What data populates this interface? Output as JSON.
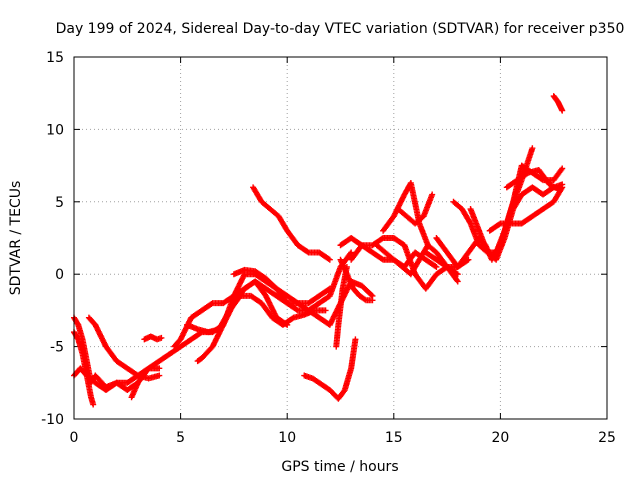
{
  "chart_data": {
    "type": "scatter",
    "title": "Day 199 of 2024, Sidereal Day-to-day VTEC variation (SDTVAR) for receiver p350",
    "xlabel": "GPS time / hours",
    "ylabel": "SDTVAR / TECUs",
    "xlim": [
      0,
      25
    ],
    "ylim": [
      -10,
      15
    ],
    "xticks": [
      "0",
      "5",
      "10",
      "15",
      "20",
      "25"
    ],
    "yticks": [
      "-10",
      "-5",
      "0",
      "5",
      "10",
      "15"
    ],
    "grid": true,
    "legend": "none",
    "marker": "plus",
    "color": "#ff0000",
    "series": [
      {
        "x": [
          0.0,
          0.2,
          0.4,
          0.6,
          0.8,
          1.0,
          1.5,
          2.0,
          2.5,
          3.0,
          3.5,
          4.0
        ],
        "y": [
          -3.0,
          -3.5,
          -4.5,
          -6.0,
          -7.5,
          -7.0,
          -7.8,
          -7.5,
          -7.5,
          -7.0,
          -6.5,
          -6.5
        ]
      },
      {
        "x": [
          0.0,
          0.3,
          0.6,
          1.0,
          1.5,
          2.0,
          2.5,
          3.0
        ],
        "y": [
          -7.0,
          -6.5,
          -7.0,
          -7.5,
          -8.0,
          -7.5,
          -8.0,
          -7.5
        ]
      },
      {
        "x": [
          0.0,
          0.2,
          0.4,
          0.6,
          0.8,
          0.9
        ],
        "y": [
          -4.0,
          -4.5,
          -5.5,
          -7.0,
          -8.5,
          -9.0
        ]
      },
      {
        "x": [
          0.7,
          1.0,
          1.5,
          2.0,
          2.5,
          3.0,
          3.5,
          4.0
        ],
        "y": [
          -3.0,
          -3.5,
          -5.0,
          -6.0,
          -6.5,
          -7.0,
          -7.2,
          -7.0
        ]
      },
      {
        "x": [
          2.7,
          3.0,
          3.5,
          4.0,
          4.5,
          5.0,
          5.5,
          6.0,
          6.5,
          7.0,
          7.5,
          8.0,
          8.5,
          9.0,
          9.5,
          10.0,
          10.5,
          11.0,
          11.5,
          12.0,
          12.5,
          13.0
        ],
        "y": [
          -8.5,
          -7.5,
          -6.5,
          -6.0,
          -5.5,
          -5.0,
          -4.5,
          -4.0,
          -4.0,
          -3.5,
          -1.5,
          0.0,
          0.0,
          -0.5,
          -1.0,
          -2.0,
          -2.5,
          -2.5,
          -2.0,
          -1.5,
          0.5,
          1.5
        ]
      },
      {
        "x": [
          3.3,
          3.6,
          3.9,
          4.1
        ],
        "y": [
          -4.5,
          -4.3,
          -4.5,
          -4.4
        ]
      },
      {
        "x": [
          4.7,
          5.0,
          5.5,
          6.0,
          6.5,
          7.0,
          7.5,
          8.0,
          8.5,
          9.0,
          9.5,
          10.0,
          10.5,
          11.0,
          11.5,
          12.0
        ],
        "y": [
          -5.0,
          -4.5,
          -3.0,
          -2.5,
          -2.0,
          -2.0,
          -1.5,
          -1.0,
          -0.5,
          -1.0,
          -1.5,
          -2.0,
          -2.0,
          -2.0,
          -1.5,
          -1.0
        ]
      },
      {
        "x": [
          5.8,
          6.0,
          6.5,
          7.0,
          7.5,
          8.0,
          8.5,
          9.0,
          9.5,
          10.0
        ],
        "y": [
          -6.0,
          -5.8,
          -5.0,
          -3.5,
          -2.0,
          -1.0,
          -0.5,
          -1.5,
          -3.0,
          -3.5
        ]
      },
      {
        "x": [
          5.3,
          5.8,
          6.3,
          6.8,
          7.3,
          7.8,
          8.3,
          8.8,
          9.3,
          9.8,
          10.3,
          10.8,
          11.3,
          11.8
        ],
        "y": [
          -3.5,
          -3.8,
          -4.0,
          -3.8,
          -2.5,
          -1.5,
          -1.5,
          -2.0,
          -3.0,
          -3.5,
          -3.0,
          -2.8,
          -2.5,
          -2.5
        ]
      },
      {
        "x": [
          7.5,
          8.0,
          8.5,
          9.0,
          9.5,
          10.0,
          10.5,
          11.0,
          11.5,
          12.0,
          12.5,
          13.0,
          13.5,
          14.0
        ],
        "y": [
          0.0,
          0.3,
          0.2,
          -0.3,
          -1.0,
          -1.5,
          -2.0,
          -2.5,
          -3.0,
          -3.5,
          -2.0,
          -0.5,
          -0.8,
          -1.5
        ]
      },
      {
        "x": [
          8.4,
          8.8,
          9.2,
          9.6,
          10.0,
          10.5,
          11.0,
          11.5,
          12.0
        ],
        "y": [
          6.0,
          5.0,
          4.5,
          4.0,
          3.0,
          2.0,
          1.5,
          1.5,
          1.0
        ]
      },
      {
        "x": [
          10.8,
          11.2,
          11.6,
          12.0,
          12.4,
          12.7,
          13.0,
          13.2
        ],
        "y": [
          -7.0,
          -7.2,
          -7.6,
          -8.0,
          -8.6,
          -8.0,
          -6.5,
          -4.5
        ]
      },
      {
        "x": [
          12.3,
          12.4,
          12.6,
          12.8
        ],
        "y": [
          -5.0,
          -3.5,
          -1.0,
          0.5
        ]
      },
      {
        "x": [
          12.5,
          12.8,
          13.1,
          13.4,
          13.7,
          14.0
        ],
        "y": [
          1.0,
          0.0,
          -1.0,
          -1.5,
          -1.8,
          -1.8
        ]
      },
      {
        "x": [
          12.5,
          13.0,
          13.5,
          14.0,
          14.5,
          15.0,
          15.5,
          16.0,
          16.5,
          17.0
        ],
        "y": [
          2.0,
          2.5,
          2.0,
          1.5,
          1.0,
          1.0,
          0.5,
          1.5,
          1.0,
          0.5
        ]
      },
      {
        "x": [
          13.0,
          13.5,
          14.0,
          14.5,
          15.0,
          15.5,
          16.0,
          16.5,
          17.0,
          17.5,
          18.0
        ],
        "y": [
          1.0,
          2.0,
          2.0,
          2.5,
          2.5,
          2.0,
          0.0,
          -1.0,
          0.0,
          0.5,
          -0.5
        ]
      },
      {
        "x": [
          14.5,
          15.0,
          15.5,
          15.8,
          16.2,
          16.6,
          17.0,
          17.5,
          18.0
        ],
        "y": [
          3.0,
          4.0,
          5.5,
          6.3,
          3.5,
          2.0,
          1.5,
          0.5,
          0.0
        ]
      },
      {
        "x": [
          15.2,
          15.6,
          16.0,
          16.4,
          16.8
        ],
        "y": [
          4.5,
          4.0,
          3.5,
          4.0,
          5.5
        ]
      },
      {
        "x": [
          14.2,
          14.6,
          15.0,
          15.4,
          15.8,
          16.2,
          16.6
        ],
        "y": [
          2.0,
          1.5,
          1.0,
          0.5,
          0.0,
          1.0,
          2.0
        ]
      },
      {
        "x": [
          16.5,
          17.0,
          17.5,
          18.0,
          18.5
        ],
        "y": [
          1.5,
          1.0,
          0.5,
          0.5,
          1.0
        ]
      },
      {
        "x": [
          17.0,
          17.5,
          18.0,
          18.5,
          19.0,
          19.3,
          19.6,
          20.0,
          20.5,
          21.0,
          21.5
        ],
        "y": [
          2.5,
          1.5,
          0.5,
          1.5,
          2.5,
          2.0,
          1.0,
          2.0,
          4.5,
          6.5,
          8.7
        ]
      },
      {
        "x": [
          17.8,
          18.2,
          18.6,
          19.0,
          19.4,
          19.8,
          20.2,
          20.6,
          21.0,
          21.5,
          22.0,
          22.5,
          22.9
        ],
        "y": [
          5.0,
          4.5,
          3.5,
          2.0,
          1.5,
          1.5,
          3.0,
          5.0,
          7.5,
          7.0,
          6.5,
          6.5,
          7.3
        ]
      },
      {
        "x": [
          18.6,
          19.0,
          19.4,
          19.8,
          20.2,
          20.6,
          21.0,
          21.5,
          22.0,
          22.5,
          22.9
        ],
        "y": [
          4.5,
          3.0,
          1.5,
          1.0,
          2.5,
          4.5,
          5.5,
          6.0,
          5.5,
          6.0,
          6.2
        ]
      },
      {
        "x": [
          19.5,
          20.0,
          20.5,
          21.0,
          21.5,
          22.0,
          22.5,
          22.9
        ],
        "y": [
          3.0,
          3.5,
          3.5,
          3.5,
          4.0,
          4.5,
          5.0,
          6.0
        ]
      },
      {
        "x": [
          20.3,
          20.8,
          21.3,
          21.8,
          22.3,
          22.8
        ],
        "y": [
          6.0,
          6.5,
          7.0,
          7.2,
          6.2,
          5.8
        ]
      },
      {
        "x": [
          22.5,
          22.6,
          22.7,
          22.8,
          22.9
        ],
        "y": [
          12.3,
          12.1,
          11.9,
          11.6,
          11.3
        ]
      }
    ]
  }
}
